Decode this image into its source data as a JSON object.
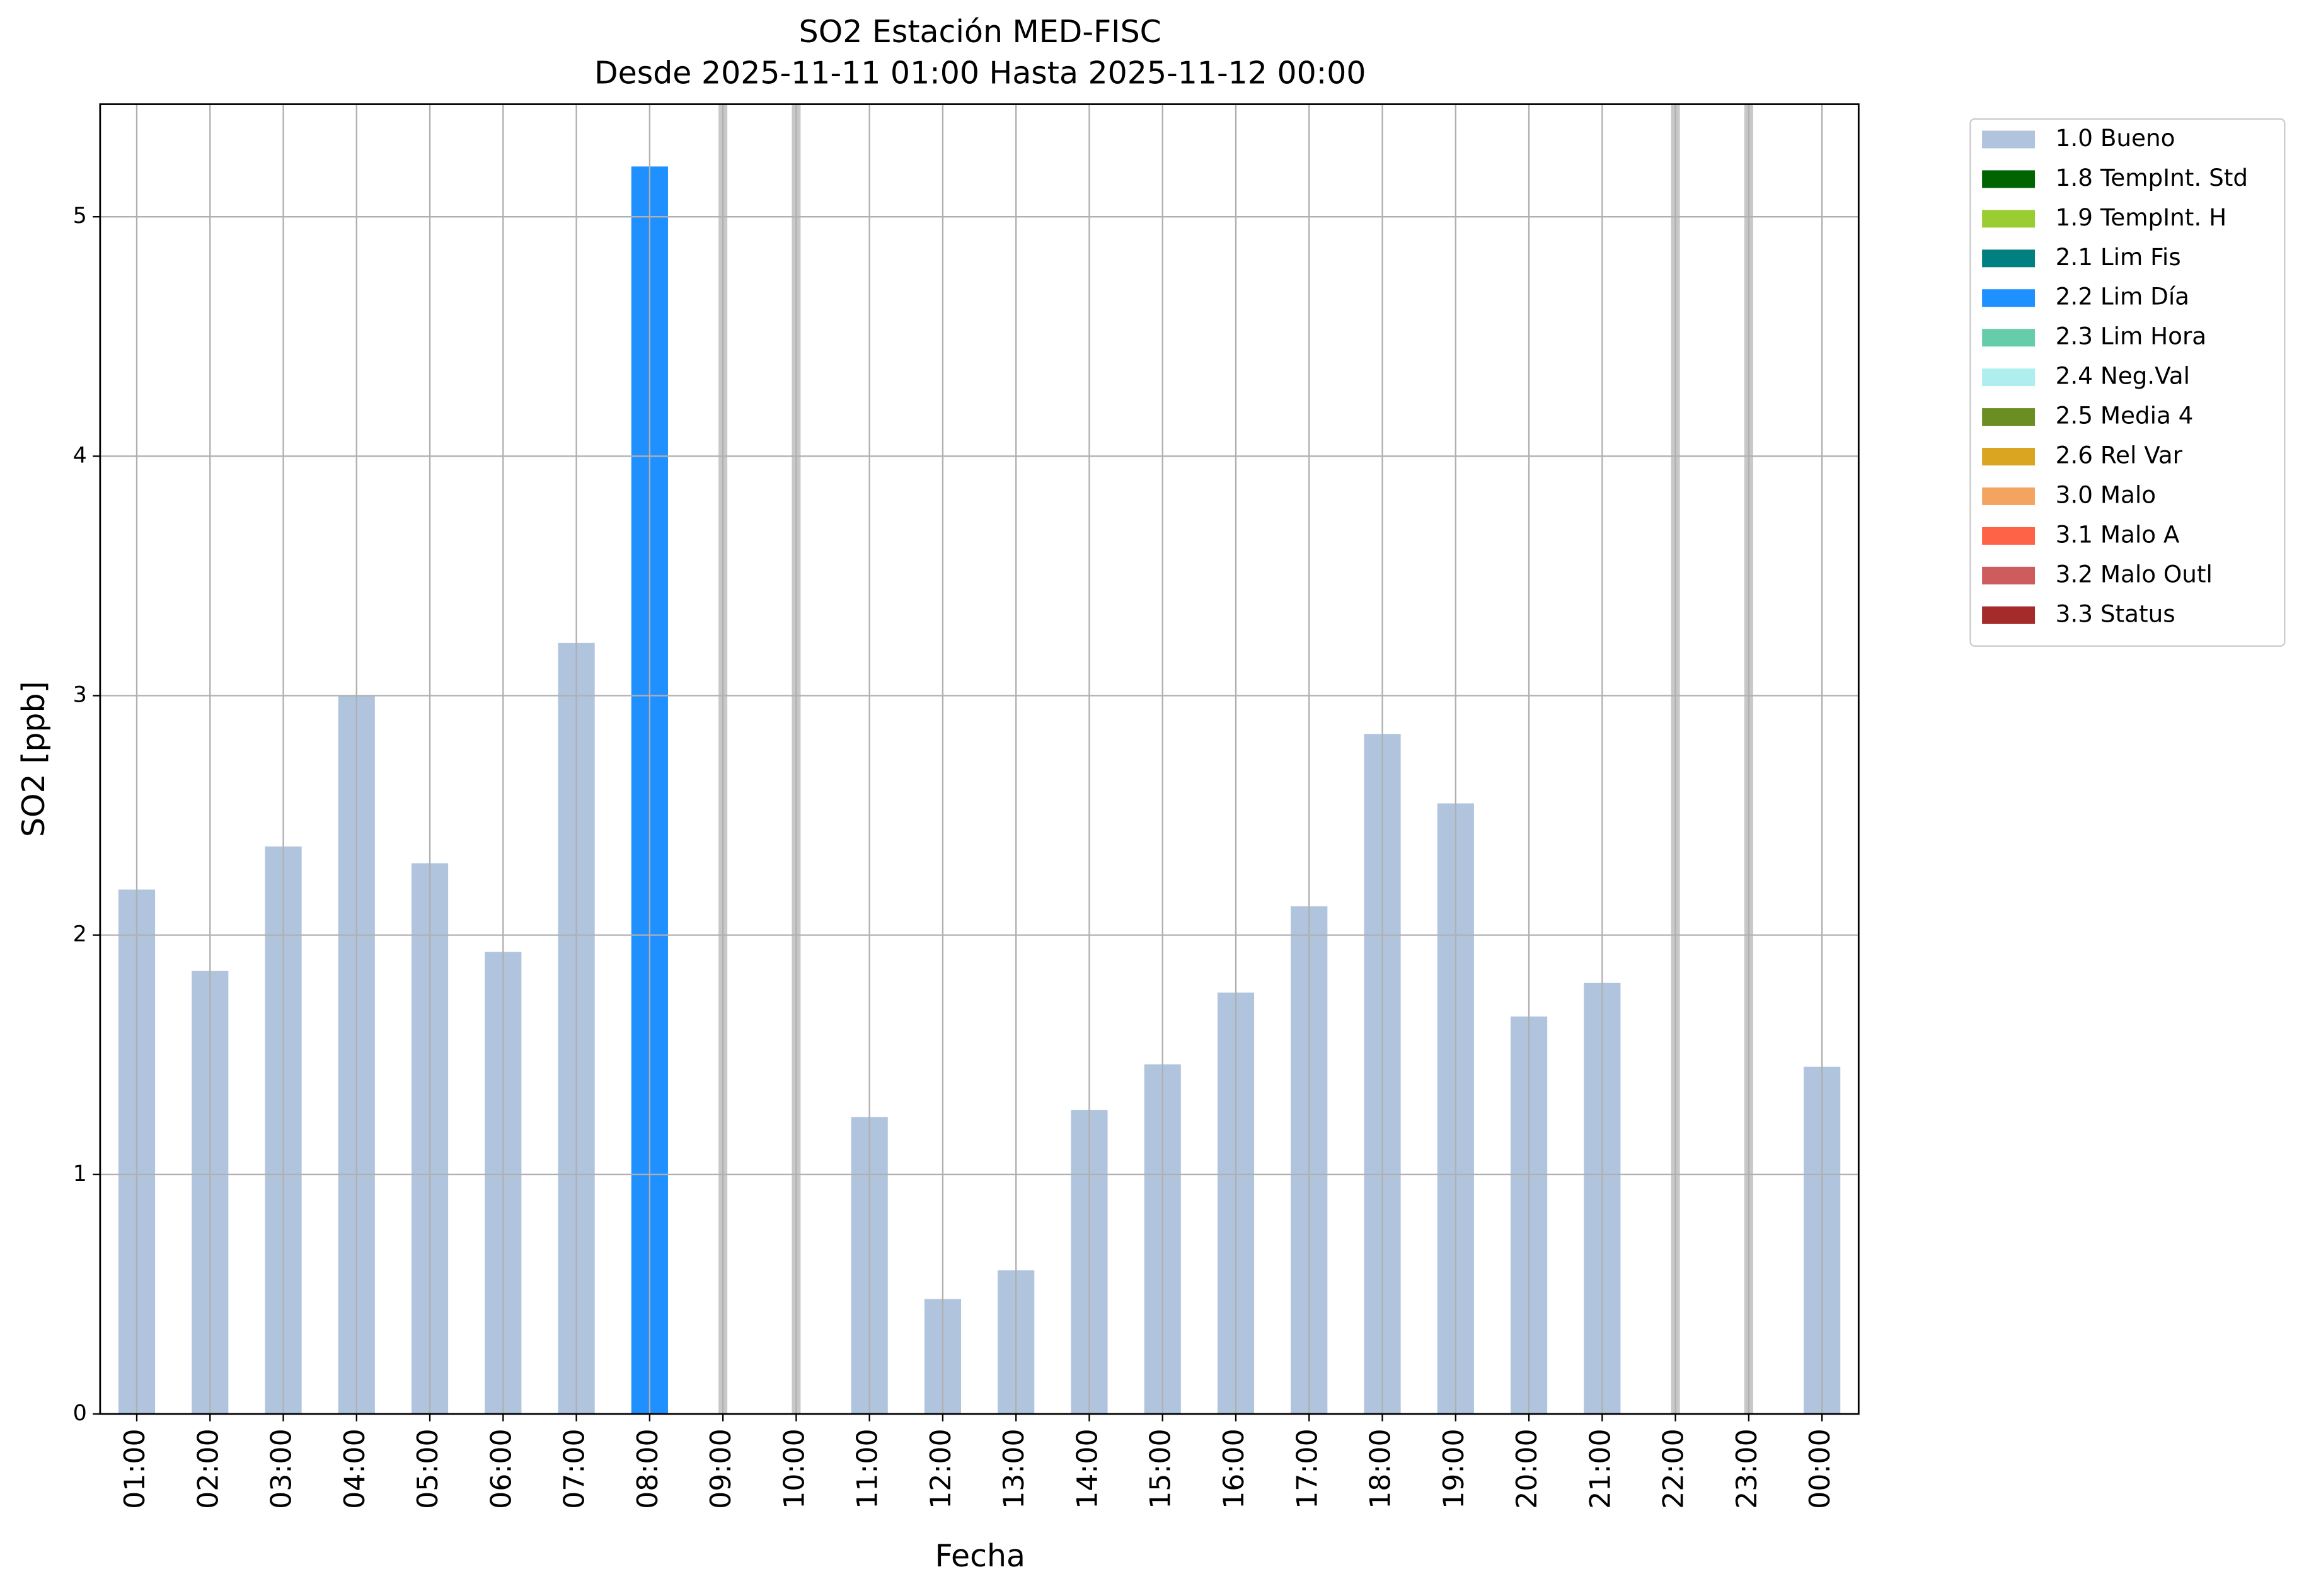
{
  "chart_data": {
    "type": "bar",
    "title": "SO2 Estación MED-FISC",
    "subtitle": "Desde 2025-11-11 01:00 Hasta 2025-11-12 00:00",
    "x_label": "Fecha",
    "y_label": "SO2 [ppb]",
    "categories": [
      "01:00",
      "02:00",
      "03:00",
      "04:00",
      "05:00",
      "06:00",
      "07:00",
      "08:00",
      "09:00",
      "10:00",
      "11:00",
      "12:00",
      "13:00",
      "14:00",
      "15:00",
      "16:00",
      "17:00",
      "18:00",
      "19:00",
      "20:00",
      "21:00",
      "22:00",
      "23:00",
      "00:00"
    ],
    "series": [
      {
        "name": "1.0 Bueno",
        "color": "#b0c4de",
        "values": [
          2.19,
          1.85,
          2.37,
          3.0,
          2.3,
          1.93,
          3.22,
          null,
          null,
          null,
          1.24,
          0.48,
          0.6,
          1.27,
          1.46,
          1.76,
          2.12,
          2.84,
          2.55,
          1.66,
          1.8,
          null,
          null,
          1.45
        ]
      },
      {
        "name": "1.8 TempInt. Std",
        "color": "#006400",
        "values": [
          null,
          null,
          null,
          null,
          null,
          null,
          null,
          null,
          null,
          null,
          null,
          null,
          null,
          null,
          null,
          null,
          null,
          null,
          null,
          null,
          null,
          null,
          null,
          null
        ]
      },
      {
        "name": "1.9 TempInt. H",
        "color": "#9acd32",
        "values": [
          null,
          null,
          null,
          null,
          null,
          null,
          null,
          null,
          null,
          null,
          null,
          null,
          null,
          null,
          null,
          null,
          null,
          null,
          null,
          null,
          null,
          null,
          null,
          null
        ]
      },
      {
        "name": "2.1 Lim Fis",
        "color": "#008080",
        "values": [
          null,
          null,
          null,
          null,
          null,
          null,
          null,
          null,
          null,
          null,
          null,
          null,
          null,
          null,
          null,
          null,
          null,
          null,
          null,
          null,
          null,
          null,
          null,
          null
        ]
      },
      {
        "name": "2.2 Lim Día",
        "color": "#1e90ff",
        "values": [
          null,
          null,
          null,
          null,
          null,
          null,
          null,
          5.21,
          null,
          null,
          null,
          null,
          null,
          null,
          null,
          null,
          null,
          null,
          null,
          null,
          null,
          null,
          null,
          null
        ]
      },
      {
        "name": "2.3 Lim Hora",
        "color": "#66cdaa",
        "values": [
          null,
          null,
          null,
          null,
          null,
          null,
          null,
          null,
          null,
          null,
          null,
          null,
          null,
          null,
          null,
          null,
          null,
          null,
          null,
          null,
          null,
          null,
          null,
          null
        ]
      },
      {
        "name": "2.4 Neg.Val",
        "color": "#afeeee",
        "values": [
          null,
          null,
          null,
          null,
          null,
          null,
          null,
          null,
          null,
          null,
          null,
          null,
          null,
          null,
          null,
          null,
          null,
          null,
          null,
          null,
          null,
          null,
          null,
          null
        ]
      },
      {
        "name": "2.5 Media 4",
        "color": "#6b8e23",
        "values": [
          null,
          null,
          null,
          null,
          null,
          null,
          null,
          null,
          null,
          null,
          null,
          null,
          null,
          null,
          null,
          null,
          null,
          null,
          null,
          null,
          null,
          null,
          null,
          null
        ]
      },
      {
        "name": "2.6 Rel Var",
        "color": "#daa520",
        "values": [
          null,
          null,
          null,
          null,
          null,
          null,
          null,
          null,
          null,
          null,
          null,
          null,
          null,
          null,
          null,
          null,
          null,
          null,
          null,
          null,
          null,
          null,
          null,
          null
        ]
      },
      {
        "name": "3.0 Malo",
        "color": "#f4a460",
        "values": [
          null,
          null,
          null,
          null,
          null,
          null,
          null,
          null,
          null,
          null,
          null,
          null,
          null,
          null,
          null,
          null,
          null,
          null,
          null,
          null,
          null,
          null,
          null,
          null
        ]
      },
      {
        "name": "3.1 Malo A",
        "color": "#ff6347",
        "values": [
          null,
          null,
          null,
          null,
          null,
          null,
          null,
          null,
          null,
          null,
          null,
          null,
          null,
          null,
          null,
          null,
          null,
          null,
          null,
          null,
          null,
          null,
          null,
          null
        ]
      },
      {
        "name": "3.2 Malo Outl",
        "color": "#cd5c5c",
        "values": [
          null,
          null,
          null,
          null,
          null,
          null,
          null,
          null,
          null,
          null,
          null,
          null,
          null,
          null,
          null,
          null,
          null,
          null,
          null,
          null,
          null,
          null,
          null,
          null
        ]
      },
      {
        "name": "3.3 Status",
        "color": "#a52a2a",
        "values": [
          null,
          null,
          null,
          null,
          null,
          null,
          null,
          null,
          null,
          null,
          null,
          null,
          null,
          null,
          null,
          null,
          null,
          null,
          null,
          null,
          null,
          null,
          null,
          null
        ]
      }
    ],
    "ylim": [
      0,
      5.47
    ],
    "yticks": [
      0,
      1,
      2,
      3,
      4,
      5
    ],
    "grid": true,
    "legend": "outside-right"
  }
}
